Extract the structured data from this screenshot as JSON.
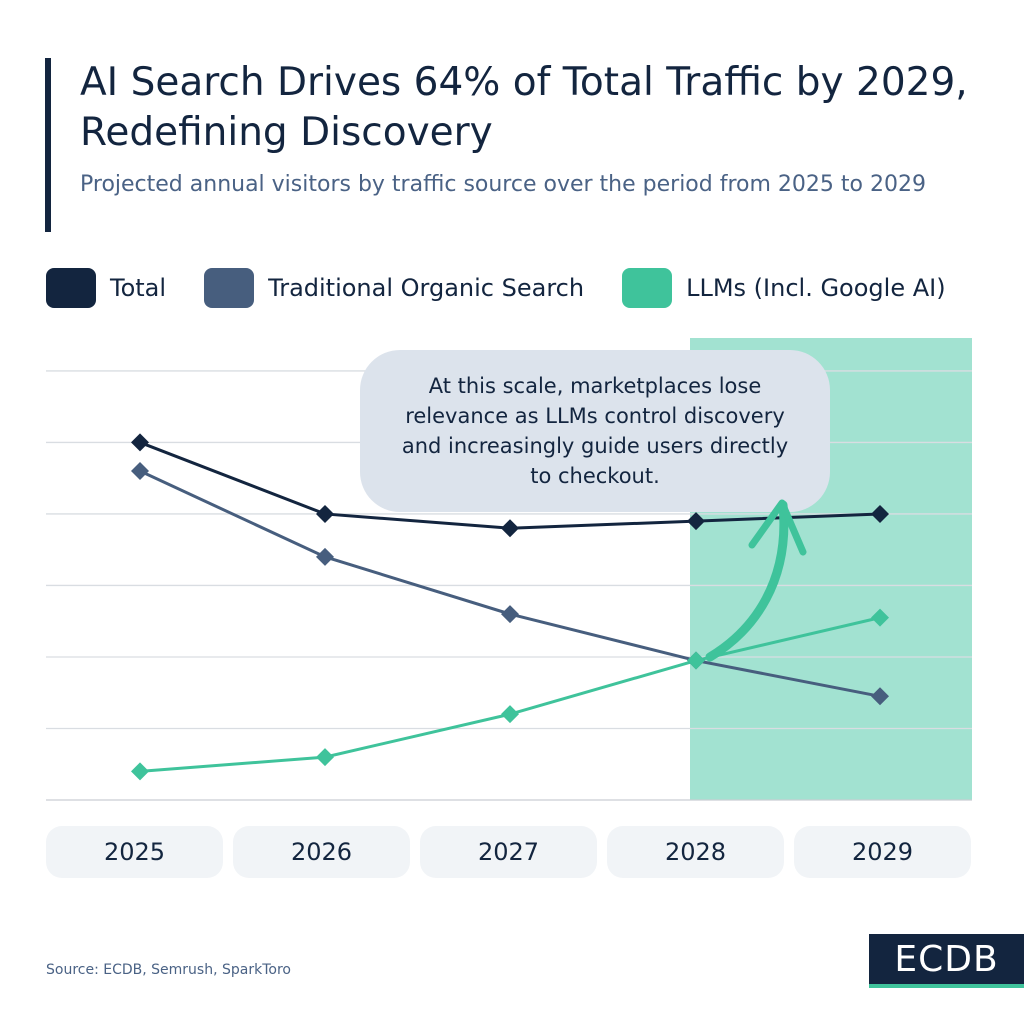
{
  "header": {
    "title": "AI Search Drives 64% of Total Traffic by 2029, Redefining Discovery",
    "subtitle": "Projected annual visitors by traffic source over the period from 2025 to 2029"
  },
  "annotation": "At this scale, marketplaces lose relevance as LLMs control discovery and increasingly guide users directly to checkout.",
  "source": "Source: ECDB, Semrush, SparkToro",
  "logo": "ECDB",
  "colors": {
    "total": "#13253f",
    "organic": "#475e7e",
    "llm": "#3fc39b",
    "highlight": "#a2e2d1",
    "grid": "#d9dde2"
  },
  "chart_data": {
    "type": "line",
    "title": "AI Search Drives 64% of Total Traffic by 2029, Redefining Discovery",
    "subtitle": "Projected annual visitors by traffic source over the period from 2025 to 2029",
    "categories": [
      "2025",
      "2026",
      "2027",
      "2028",
      "2029"
    ],
    "series": [
      {
        "name": "Total",
        "values": [
          5.0,
          4.0,
          3.8,
          3.9,
          4.0
        ]
      },
      {
        "name": "Traditional Organic Search",
        "values": [
          4.6,
          3.4,
          2.6,
          1.95,
          1.45
        ]
      },
      {
        "name": "LLMs (Incl. Google AI)",
        "values": [
          0.4,
          0.6,
          1.2,
          1.95,
          2.55
        ]
      }
    ],
    "ylim": [
      0,
      7
    ],
    "y_tick_labels_shown": false,
    "grid": true,
    "highlighted_categories": [
      "2028",
      "2029"
    ],
    "legend_placement": "top"
  }
}
